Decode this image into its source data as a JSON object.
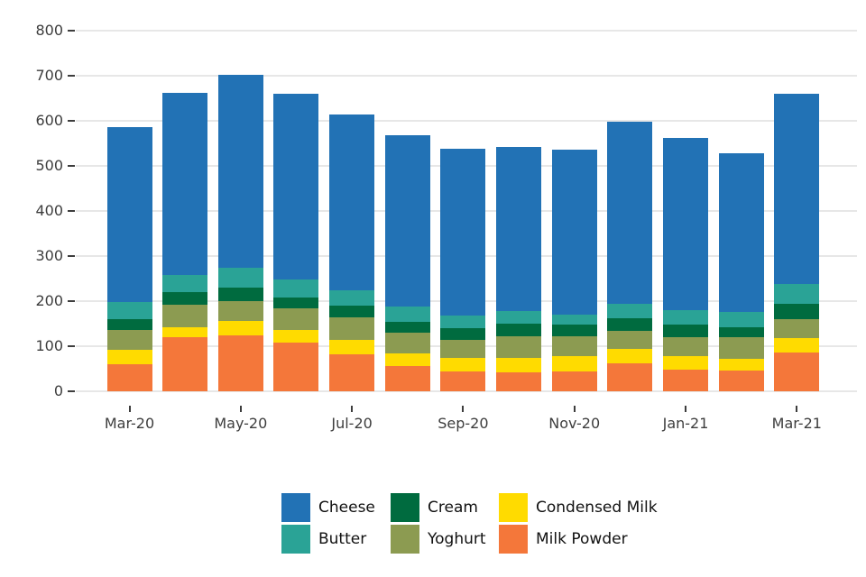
{
  "colors": {
    "background": "#FFFFFF",
    "gridline": "#E7E7E7",
    "tick": "#3D3D3D",
    "axis_text": "#3D3D3D",
    "legend_text": "#111111"
  },
  "chart_data": {
    "type": "bar",
    "stacked": true,
    "stacking": "bottom-to-top",
    "title": "",
    "xlabel": "",
    "ylabel": "",
    "categories": [
      "Mar-20",
      "Apr-20",
      "May-20",
      "Jun-20",
      "Jul-20",
      "Aug-20",
      "Sep-20",
      "Oct-20",
      "Nov-20",
      "Dec-20",
      "Jan-21",
      "Feb-21",
      "Mar-21"
    ],
    "x_axis_tick_labels": [
      "Mar-20",
      "May-20",
      "Jul-20",
      "Sep-20",
      "Nov-20",
      "Jan-21",
      "Mar-21"
    ],
    "series": [
      {
        "name": "Milk Powder",
        "color": "#F4773A",
        "values": [
          60,
          119,
          124,
          108,
          82,
          55,
          44,
          42,
          44,
          62,
          48,
          46,
          85
        ]
      },
      {
        "name": "Condensed Milk",
        "color": "#FFDB00",
        "values": [
          32,
          23,
          31,
          28,
          31,
          29,
          30,
          32,
          33,
          32,
          29,
          25,
          32
        ]
      },
      {
        "name": "Yoghurt",
        "color": "#8C9B51",
        "values": [
          44,
          50,
          45,
          47,
          50,
          45,
          40,
          48,
          45,
          39,
          43,
          48,
          43
        ]
      },
      {
        "name": "Cream",
        "color": "#006B3F",
        "values": [
          24,
          28,
          29,
          25,
          26,
          25,
          25,
          27,
          25,
          29,
          28,
          23,
          33
        ]
      },
      {
        "name": "Butter",
        "color": "#2AA396",
        "values": [
          38,
          37,
          44,
          39,
          35,
          33,
          28,
          28,
          23,
          32,
          32,
          33,
          44
        ]
      },
      {
        "name": "Cheese",
        "color": "#2272B5",
        "values": [
          388,
          404,
          429,
          413,
          389,
          380,
          370,
          364,
          365,
          403,
          381,
          353,
          423
        ]
      }
    ],
    "totals": [
      586,
      661,
      702,
      660,
      613,
      567,
      537,
      541,
      535,
      597,
      561,
      528,
      660
    ],
    "ylim": [
      0,
      800
    ],
    "yticks": [
      0,
      100,
      200,
      300,
      400,
      500,
      600,
      700,
      800
    ],
    "grid": "horizontal",
    "legend_position": "bottom",
    "legend_rows": [
      [
        "Cheese",
        "Cream",
        "Condensed Milk"
      ],
      [
        "Butter",
        "Yoghurt",
        "Milk Powder"
      ]
    ]
  }
}
